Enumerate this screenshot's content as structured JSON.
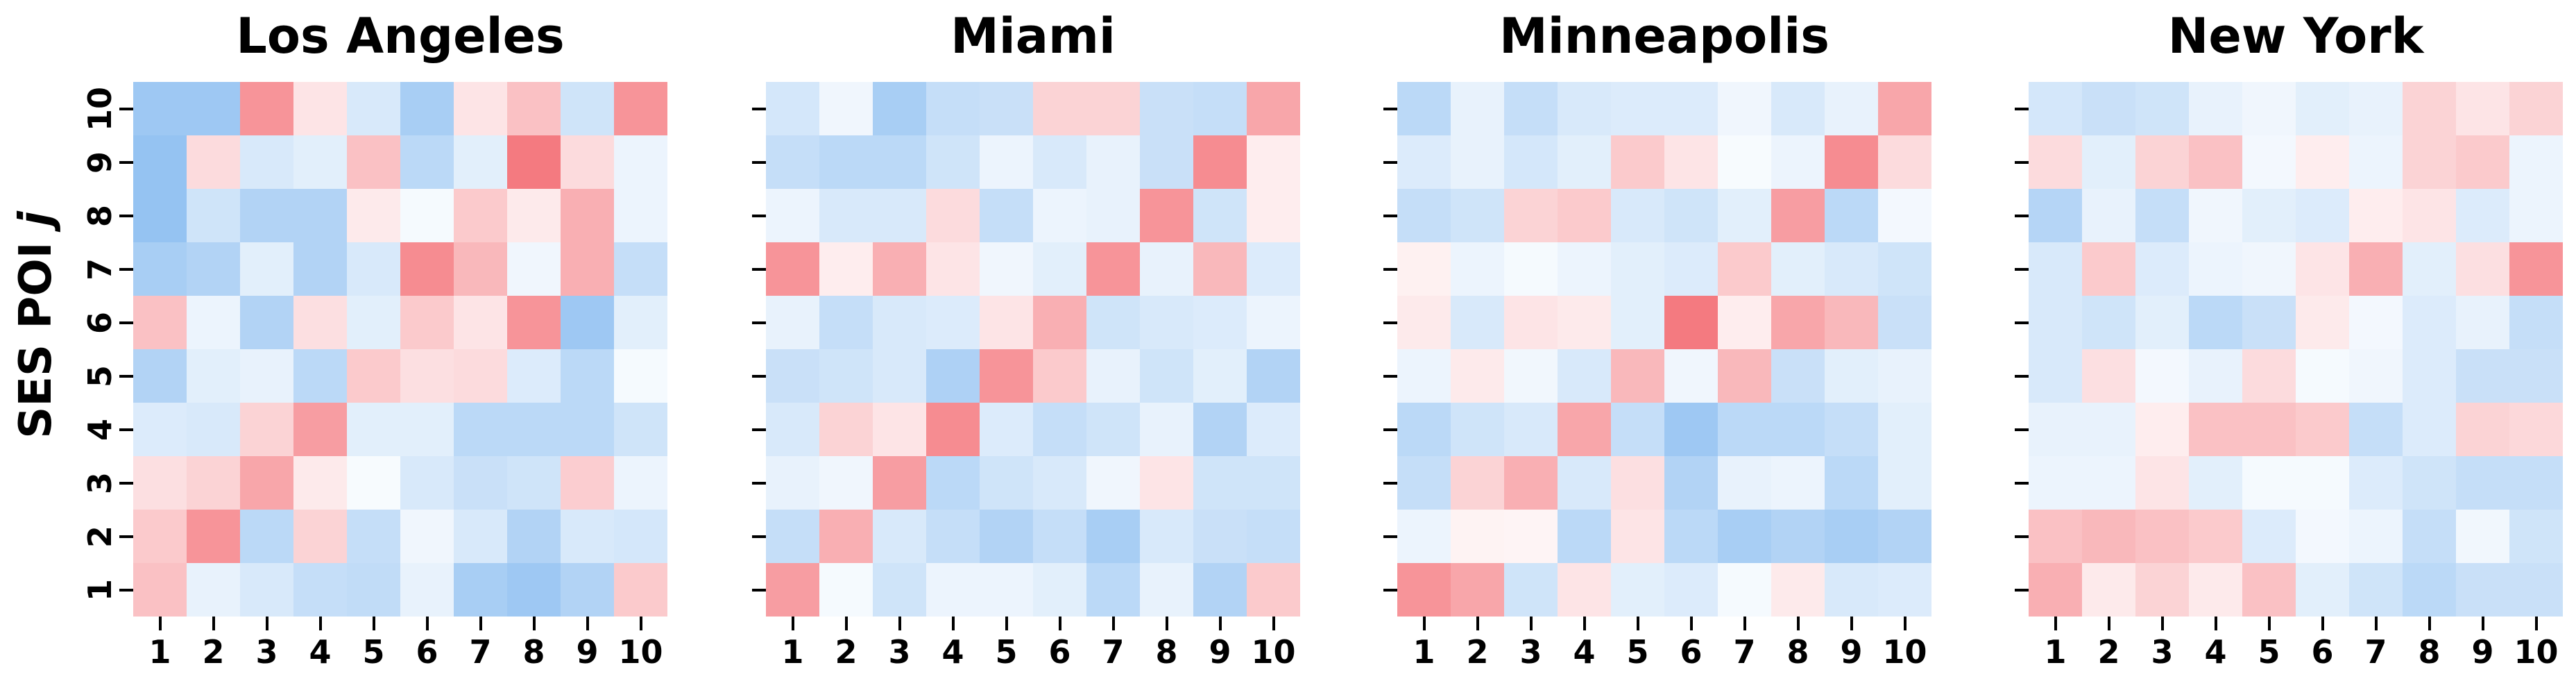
{
  "figure": {
    "background": "#ffffff",
    "ylabel": {
      "prefix": "SES POI ",
      "variable": "j"
    },
    "x_tick_labels": [
      "1",
      "2",
      "3",
      "4",
      "5",
      "6",
      "7",
      "8",
      "9",
      "10"
    ],
    "y_tick_labels": [
      "1",
      "2",
      "3",
      "4",
      "5",
      "6",
      "7",
      "8",
      "9",
      "10"
    ],
    "colormap": {
      "type": "diverging",
      "negative_end": "#87bbf0",
      "center": "#ffffff",
      "positive_end": "#f3686f",
      "negative_calibration": 0.62,
      "positive_calibration": 0.85
    }
  },
  "chart_data": [
    {
      "type": "heatmap",
      "title": "Los Angeles",
      "x": [
        1,
        2,
        3,
        4,
        5,
        6,
        7,
        8,
        9,
        10
      ],
      "y": [
        1,
        2,
        3,
        4,
        5,
        6,
        7,
        8,
        9,
        10
      ],
      "row_order": "rows listed top-to-bottom: j=10 first, j=1 last",
      "values": [
        [
          -0.5,
          -0.5,
          0.6,
          0.15,
          -0.2,
          -0.45,
          0.15,
          0.35,
          -0.25,
          0.6
        ],
        [
          -0.55,
          0.2,
          -0.2,
          -0.15,
          0.35,
          -0.35,
          -0.15,
          0.75,
          0.2,
          -0.1
        ],
        [
          -0.55,
          -0.25,
          -0.4,
          -0.4,
          0.12,
          -0.05,
          0.3,
          0.12,
          0.45,
          -0.1
        ],
        [
          -0.45,
          -0.4,
          -0.15,
          -0.4,
          -0.2,
          0.65,
          0.4,
          -0.08,
          0.45,
          -0.3
        ],
        [
          0.35,
          -0.1,
          -0.4,
          0.18,
          -0.15,
          0.3,
          0.15,
          0.6,
          -0.5,
          -0.15
        ],
        [
          -0.4,
          -0.15,
          -0.12,
          -0.35,
          0.3,
          0.18,
          0.2,
          -0.18,
          -0.35,
          -0.05
        ],
        [
          -0.18,
          -0.2,
          0.25,
          0.55,
          -0.15,
          -0.15,
          -0.35,
          -0.35,
          -0.35,
          -0.25
        ],
        [
          0.18,
          0.25,
          0.5,
          0.12,
          -0.04,
          -0.2,
          -0.28,
          -0.25,
          0.28,
          -0.1
        ],
        [
          0.3,
          0.6,
          -0.35,
          0.25,
          -0.3,
          -0.08,
          -0.2,
          -0.4,
          -0.2,
          -0.22
        ],
        [
          0.35,
          -0.12,
          -0.2,
          -0.3,
          -0.32,
          -0.12,
          -0.45,
          -0.5,
          -0.4,
          0.3
        ]
      ]
    },
    {
      "type": "heatmap",
      "title": "Miami",
      "x": [
        1,
        2,
        3,
        4,
        5,
        6,
        7,
        8,
        9,
        10
      ],
      "y": [
        1,
        2,
        3,
        4,
        5,
        6,
        7,
        8,
        9,
        10
      ],
      "row_order": "rows listed top-to-bottom: j=10 first, j=1 last",
      "values": [
        [
          -0.22,
          -0.08,
          -0.45,
          -0.3,
          -0.28,
          0.25,
          0.25,
          -0.28,
          -0.3,
          0.5
        ],
        [
          -0.3,
          -0.35,
          -0.35,
          -0.25,
          -0.1,
          -0.2,
          -0.12,
          -0.28,
          0.65,
          0.1
        ],
        [
          -0.1,
          -0.2,
          -0.2,
          0.2,
          -0.3,
          -0.1,
          -0.12,
          0.6,
          -0.25,
          0.1
        ],
        [
          0.6,
          0.1,
          0.45,
          0.15,
          -0.08,
          -0.15,
          0.6,
          -0.12,
          0.4,
          -0.18
        ],
        [
          -0.12,
          -0.3,
          -0.2,
          -0.18,
          0.15,
          0.45,
          -0.25,
          -0.2,
          -0.18,
          -0.1
        ],
        [
          -0.28,
          -0.25,
          -0.2,
          -0.42,
          0.6,
          0.3,
          -0.12,
          -0.25,
          -0.15,
          -0.4
        ],
        [
          -0.2,
          0.25,
          0.15,
          0.65,
          -0.18,
          -0.3,
          -0.25,
          -0.12,
          -0.4,
          -0.18
        ],
        [
          -0.12,
          -0.08,
          0.55,
          -0.35,
          -0.25,
          -0.2,
          -0.08,
          0.15,
          -0.25,
          -0.25
        ],
        [
          -0.3,
          0.45,
          -0.2,
          -0.3,
          -0.4,
          -0.3,
          -0.45,
          -0.2,
          -0.28,
          -0.3
        ],
        [
          0.55,
          -0.05,
          -0.25,
          -0.1,
          -0.1,
          -0.15,
          -0.35,
          -0.12,
          -0.4,
          0.3
        ]
      ]
    },
    {
      "type": "heatmap",
      "title": "Minneapolis",
      "x": [
        1,
        2,
        3,
        4,
        5,
        6,
        7,
        8,
        9,
        10
      ],
      "y": [
        1,
        2,
        3,
        4,
        5,
        6,
        7,
        8,
        9,
        10
      ],
      "row_order": "rows listed top-to-bottom: j=10 first, j=1 last",
      "values": [
        [
          -0.35,
          -0.12,
          -0.3,
          -0.2,
          -0.18,
          -0.18,
          -0.08,
          -0.2,
          -0.12,
          0.5
        ],
        [
          -0.18,
          -0.12,
          -0.22,
          -0.15,
          0.3,
          0.15,
          -0.04,
          -0.1,
          0.65,
          0.2
        ],
        [
          -0.3,
          -0.25,
          0.25,
          0.3,
          -0.2,
          -0.25,
          -0.15,
          0.55,
          -0.35,
          -0.06
        ],
        [
          0.08,
          -0.1,
          -0.05,
          -0.1,
          -0.15,
          -0.18,
          0.3,
          -0.15,
          -0.2,
          -0.25
        ],
        [
          0.12,
          -0.2,
          0.15,
          0.12,
          -0.15,
          0.75,
          0.1,
          0.5,
          0.4,
          -0.28
        ],
        [
          -0.1,
          0.12,
          -0.07,
          -0.2,
          0.4,
          -0.08,
          0.4,
          -0.28,
          -0.15,
          -0.12
        ],
        [
          -0.35,
          -0.25,
          -0.2,
          0.5,
          -0.3,
          -0.5,
          -0.35,
          -0.35,
          -0.3,
          -0.15
        ],
        [
          -0.3,
          0.25,
          0.45,
          -0.2,
          0.18,
          -0.4,
          -0.12,
          -0.1,
          -0.35,
          -0.15
        ],
        [
          -0.1,
          0.07,
          0.06,
          -0.35,
          0.15,
          -0.35,
          -0.45,
          -0.4,
          -0.45,
          -0.4
        ],
        [
          0.6,
          0.5,
          -0.25,
          0.15,
          -0.15,
          -0.18,
          -0.05,
          0.12,
          -0.2,
          -0.18
        ]
      ]
    },
    {
      "type": "heatmap",
      "title": "New York",
      "x": [
        1,
        2,
        3,
        4,
        5,
        6,
        7,
        8,
        9,
        10
      ],
      "y": [
        1,
        2,
        3,
        4,
        5,
        6,
        7,
        8,
        9,
        10
      ],
      "row_order": "rows listed top-to-bottom: j=10 first, j=1 last",
      "values": [
        [
          -0.22,
          -0.28,
          -0.25,
          -0.12,
          -0.08,
          -0.15,
          -0.12,
          0.25,
          0.15,
          0.25
        ],
        [
          0.2,
          -0.15,
          0.25,
          0.35,
          -0.06,
          0.1,
          -0.1,
          0.25,
          0.3,
          -0.1
        ],
        [
          -0.38,
          -0.12,
          -0.3,
          -0.08,
          -0.15,
          -0.18,
          0.1,
          0.15,
          -0.18,
          -0.1
        ],
        [
          -0.2,
          0.3,
          -0.18,
          -0.1,
          -0.08,
          0.15,
          0.45,
          -0.15,
          0.18,
          0.6
        ],
        [
          -0.2,
          -0.25,
          -0.15,
          -0.35,
          -0.28,
          0.12,
          -0.06,
          -0.18,
          -0.12,
          -0.3
        ],
        [
          -0.2,
          0.18,
          -0.06,
          -0.12,
          0.2,
          -0.05,
          -0.08,
          -0.18,
          -0.28,
          -0.28
        ],
        [
          -0.12,
          -0.12,
          0.1,
          0.35,
          0.35,
          0.3,
          -0.3,
          -0.18,
          0.25,
          0.22
        ],
        [
          -0.1,
          -0.1,
          0.15,
          -0.15,
          -0.05,
          -0.05,
          -0.18,
          -0.25,
          -0.3,
          -0.3
        ],
        [
          0.35,
          0.4,
          0.35,
          0.3,
          -0.18,
          -0.06,
          -0.1,
          -0.3,
          -0.07,
          -0.25
        ],
        [
          0.45,
          0.12,
          0.25,
          0.12,
          0.35,
          -0.15,
          -0.25,
          -0.35,
          -0.28,
          -0.28
        ]
      ]
    }
  ]
}
